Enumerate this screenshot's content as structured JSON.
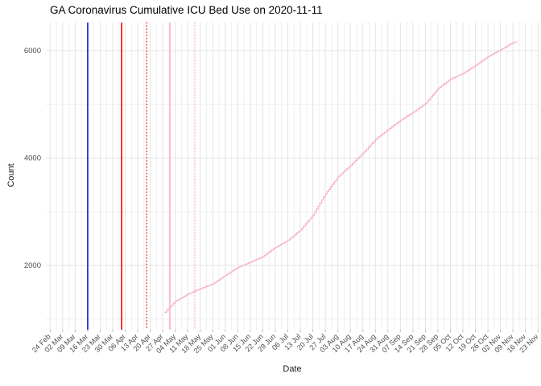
{
  "title": "GA Coronavirus Cumulative ICU Bed Use on 2020-11-11",
  "chart_data": {
    "type": "line",
    "title": "GA Coronavirus Cumulative ICU Bed Use on 2020-11-11",
    "xlabel": "Date",
    "ylabel": "Count",
    "background": "#ffffff",
    "grid": {
      "major_color": "#e3e3e3",
      "minor_color": "#efefef",
      "tick_color": "#b9b9b9",
      "tick_label_color": "#4d4d4d"
    },
    "xlim_days": [
      -2.4,
      273.8
    ],
    "x_axis": {
      "tick_interval_days": 7,
      "tick_labels": [
        "24 Feb",
        "02 Mar",
        "09 Mar",
        "16 Mar",
        "23 Mar",
        "30 Mar",
        "06 Apr",
        "13 Apr",
        "20 Apr",
        "27 Apr",
        "04 May",
        "11 May",
        "18 May",
        "25 May",
        "01 Jun",
        "08 Jun",
        "15 Jun",
        "22 Jun",
        "29 Jun",
        "06 Jul",
        "13 Jul",
        "20 Jul",
        "27 Jul",
        "03 Aug",
        "10 Aug",
        "17 Aug",
        "24 Aug",
        "31 Aug",
        "07 Sep",
        "14 Sep",
        "21 Sep",
        "28 Sep",
        "05 Oct",
        "12 Oct",
        "19 Oct",
        "26 Oct",
        "02 Nov",
        "09 Nov",
        "16 Nov",
        "23 Nov"
      ]
    },
    "y_axis": {
      "ylim": [
        831,
        6524
      ],
      "major_ticks": [
        2000,
        4000,
        6000
      ],
      "minor_gridlines": [
        1000,
        3000,
        5000
      ]
    },
    "event_lines": [
      {
        "date": "2020-03-16",
        "day": 21,
        "color": "#2222cc",
        "style": "solid",
        "name": "event-line-blue-solid"
      },
      {
        "date": "2020-04-04",
        "day": 40,
        "color": "#ee1111",
        "style": "solid",
        "name": "event-line-red-solid"
      },
      {
        "date": "2020-04-18",
        "day": 54,
        "color": "#ee1111",
        "style": "dotted",
        "name": "event-line-red-dotted"
      },
      {
        "date": "2020-05-01",
        "day": 67,
        "color": "#ffb6c1",
        "style": "solid",
        "name": "event-line-pink-solid"
      },
      {
        "date": "2020-05-15",
        "day": 81,
        "color": "#ffb6c1",
        "style": "dotted",
        "name": "event-line-pink-dotted"
      }
    ],
    "series": [
      {
        "name": "cumulative-icu-beds",
        "color": "#f7b1c1",
        "points": [
          {
            "date": "2020-04-28",
            "day": 64,
            "value": 1125
          },
          {
            "date": "2020-05-04",
            "day": 70,
            "value": 1330
          },
          {
            "date": "2020-05-11",
            "day": 77,
            "value": 1465
          },
          {
            "date": "2020-05-18",
            "day": 84,
            "value": 1565
          },
          {
            "date": "2020-05-25",
            "day": 91,
            "value": 1655
          },
          {
            "date": "2020-06-01",
            "day": 98,
            "value": 1815
          },
          {
            "date": "2020-06-08",
            "day": 105,
            "value": 1960
          },
          {
            "date": "2020-06-15",
            "day": 112,
            "value": 2060
          },
          {
            "date": "2020-06-22",
            "day": 119,
            "value": 2165
          },
          {
            "date": "2020-06-29",
            "day": 126,
            "value": 2335
          },
          {
            "date": "2020-07-06",
            "day": 133,
            "value": 2465
          },
          {
            "date": "2020-07-13",
            "day": 140,
            "value": 2660
          },
          {
            "date": "2020-07-20",
            "day": 147,
            "value": 2935
          },
          {
            "date": "2020-07-27",
            "day": 154,
            "value": 3330
          },
          {
            "date": "2020-08-03",
            "day": 161,
            "value": 3650
          },
          {
            "date": "2020-08-10",
            "day": 168,
            "value": 3860
          },
          {
            "date": "2020-08-17",
            "day": 175,
            "value": 4090
          },
          {
            "date": "2020-08-24",
            "day": 182,
            "value": 4345
          },
          {
            "date": "2020-08-31",
            "day": 189,
            "value": 4530
          },
          {
            "date": "2020-09-07",
            "day": 196,
            "value": 4700
          },
          {
            "date": "2020-09-14",
            "day": 203,
            "value": 4850
          },
          {
            "date": "2020-09-21",
            "day": 210,
            "value": 5015
          },
          {
            "date": "2020-09-28",
            "day": 217,
            "value": 5295
          },
          {
            "date": "2020-10-05",
            "day": 224,
            "value": 5470
          },
          {
            "date": "2020-10-12",
            "day": 231,
            "value": 5575
          },
          {
            "date": "2020-10-19",
            "day": 238,
            "value": 5725
          },
          {
            "date": "2020-10-26",
            "day": 245,
            "value": 5890
          },
          {
            "date": "2020-11-02",
            "day": 252,
            "value": 6015
          },
          {
            "date": "2020-11-09",
            "day": 259,
            "value": 6150
          },
          {
            "date": "2020-11-11",
            "day": 261,
            "value": 6170
          }
        ]
      }
    ]
  }
}
